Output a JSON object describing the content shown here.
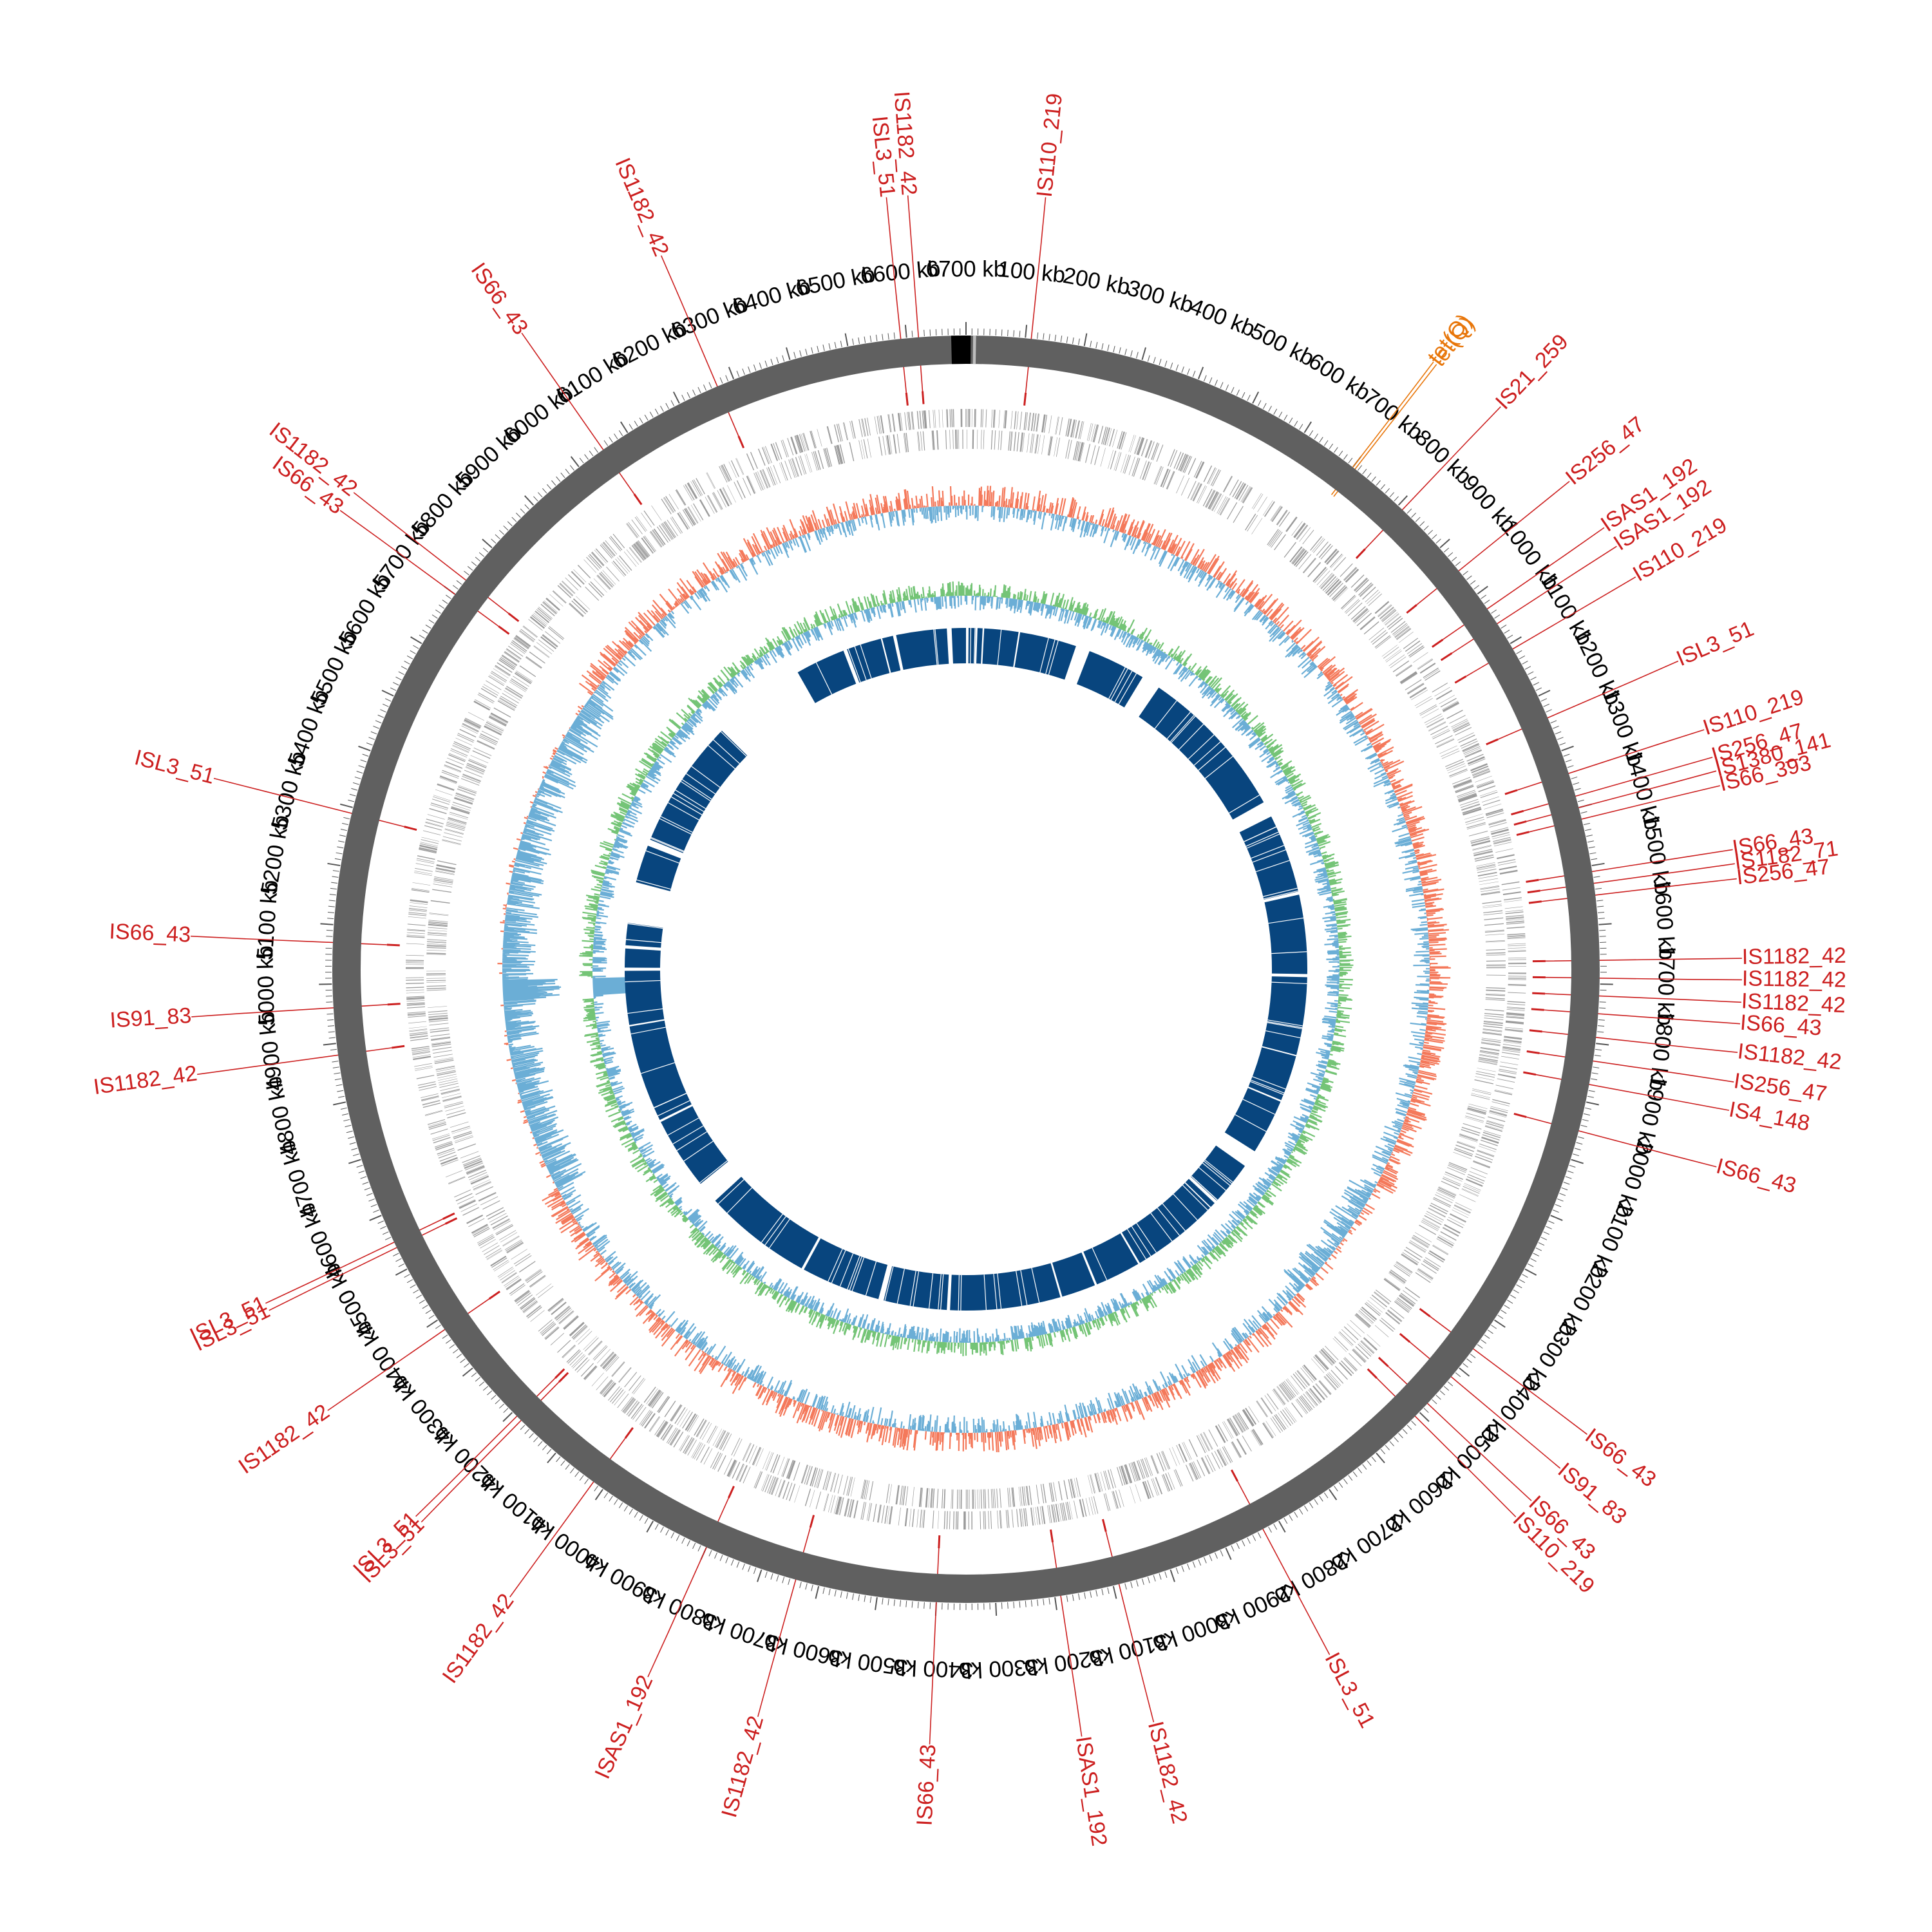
{
  "chart_data": {
    "type": "circular-genome-map",
    "genome_length_kb": 6700,
    "tick_interval_kb": 100,
    "tick_label_suffix": " kb",
    "colors": {
      "backbone": "#606060",
      "origin_block": "#000000",
      "cds_track": "#9a9a9a",
      "gc_content_pos": "#f4795b",
      "gc_content_neg": "#6baed6",
      "gc_skew_pos": "#74c476",
      "gc_skew_neg": "#6baed6",
      "homology_blocks": "#08457e",
      "is_label": "#cc1f1f",
      "resistance_label": "#e8760a"
    },
    "insertion_sequences": [
      {
        "label": "IS110_219",
        "kb": 110
      },
      {
        "label": "IS1182_42",
        "kb": 6620
      },
      {
        "label": "ISL3_51",
        "kb": 6590
      },
      {
        "label": "IS1182_42",
        "kb": 6270
      },
      {
        "label": "IS66_43",
        "kb": 6050
      },
      {
        "label": "IS1182_42",
        "kb": 5730
      },
      {
        "label": "IS66_43",
        "kb": 5700
      },
      {
        "label": "ISL3_51",
        "kb": 5290
      },
      {
        "label": "IS66_43",
        "kb": 5070
      },
      {
        "label": "IS91_83",
        "kb": 4960
      },
      {
        "label": "IS1182_42",
        "kb": 4880
      },
      {
        "label": "ISL3_51",
        "kb": 4550
      },
      {
        "label": "ISL3_51",
        "kb": 4540
      },
      {
        "label": "IS1182_42",
        "kb": 4380
      },
      {
        "label": "ISL3_51",
        "kb": 4190
      },
      {
        "label": "ISL3_51",
        "kb": 4180
      },
      {
        "label": "IS1182_42",
        "kb": 4020
      },
      {
        "label": "ISAS1_192",
        "kb": 3800
      },
      {
        "label": "IS1182_42",
        "kb": 3640
      },
      {
        "label": "IS66_43",
        "kb": 3400
      },
      {
        "label": "ISAS1_192",
        "kb": 3190
      },
      {
        "label": "IS1182_42",
        "kb": 3090
      },
      {
        "label": "ISL3_51",
        "kb": 2830
      },
      {
        "label": "IS110_219",
        "kb": 2510
      },
      {
        "label": "IS66_43",
        "kb": 2480
      },
      {
        "label": "IS91_83",
        "kb": 2420
      },
      {
        "label": "IS66_43",
        "kb": 2360
      },
      {
        "label": "IS66_43",
        "kb": 1950
      },
      {
        "label": "IS4_148",
        "kb": 1870
      },
      {
        "label": "IS256_47",
        "kb": 1830
      },
      {
        "label": "IS1182_42",
        "kb": 1790
      },
      {
        "label": "IS66_43",
        "kb": 1750
      },
      {
        "label": "IS1182_42",
        "kb": 1720
      },
      {
        "label": "IS1182_42",
        "kb": 1690
      },
      {
        "label": "IS1182_42",
        "kb": 1660
      },
      {
        "label": "IS256_47",
        "kb": 1550
      },
      {
        "label": "IS1182_71",
        "kb": 1530
      },
      {
        "label": "IS66_43",
        "kb": 1510
      },
      {
        "label": "IS66_393",
        "kb": 1420
      },
      {
        "label": "IS1380_141",
        "kb": 1400
      },
      {
        "label": "IS256_47",
        "kb": 1380
      },
      {
        "label": "IS110_219",
        "kb": 1340
      },
      {
        "label": "ISL3_51",
        "kb": 1240
      },
      {
        "label": "IS110_219",
        "kb": 1110
      },
      {
        "label": "ISAS1_192",
        "kb": 1060
      },
      {
        "label": "ISAS1_192",
        "kb": 1030
      },
      {
        "label": "IS256_47",
        "kb": 950
      },
      {
        "label": "IS21_259",
        "kb": 810
      }
    ],
    "resistance_genes": [
      {
        "label": "tet(Q)",
        "kb": 700
      },
      {
        "label": "tet(Q)",
        "kb": 705
      }
    ],
    "homology_gaps_kb": [
      [
        0,
        8
      ],
      [
        30,
        36
      ],
      [
        52,
        56
      ],
      [
        165,
        170
      ],
      [
        350,
        395
      ],
      [
        580,
        640
      ],
      [
        1130,
        1180
      ],
      [
        1430,
        1440
      ],
      [
        1690,
        1700
      ],
      [
        2095,
        2100
      ],
      [
        2275,
        2330
      ],
      [
        2470,
        2480
      ],
      [
        2780,
        2786
      ],
      [
        2930,
        2937
      ],
      [
        3045,
        3051
      ],
      [
        3400,
        3410
      ],
      [
        3610,
        3625
      ],
      [
        3880,
        3886
      ],
      [
        4230,
        4300
      ],
      [
        4530,
        4537
      ],
      [
        4845,
        4850
      ],
      [
        5020,
        5030
      ],
      [
        5090,
        5100
      ],
      [
        5170,
        5300
      ],
      [
        5420,
        5440
      ],
      [
        5850,
        6150
      ],
      [
        6310,
        6320
      ],
      [
        6470,
        6480
      ],
      [
        6640,
        6655
      ]
    ]
  }
}
